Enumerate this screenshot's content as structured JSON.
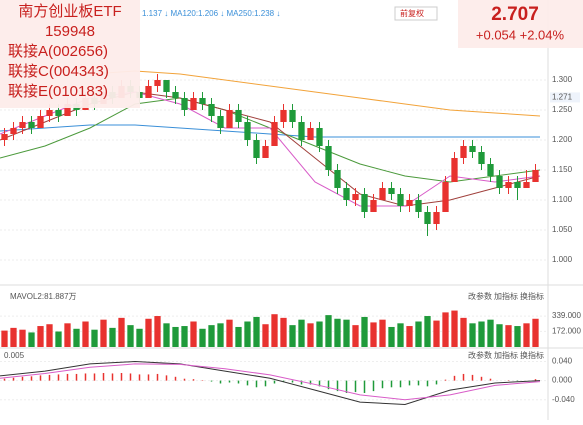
{
  "overlay": {
    "name_lines": [
      "南方创业板ETF",
      "159948",
      "联接A(002656)",
      "联接C(004343)",
      "联接E(010183)"
    ],
    "price": "2.707",
    "change": "+0.054 +2.04%"
  },
  "top_bar": {
    "ma_text": "1.137 ↓ MA120:1.206 ↓ MA250:1.238 ↓",
    "adjust": "前复权"
  },
  "chart_data": {
    "type": "candlestick",
    "ylim": [
      0.975,
      1.4
    ],
    "yticks": [
      {
        "value": 1.3,
        "label": "1.300"
      },
      {
        "value": 1.25,
        "label": "1.250"
      },
      {
        "value": 1.2,
        "label": "1.200"
      },
      {
        "value": 1.15,
        "label": "1.150"
      },
      {
        "value": 1.1,
        "label": "1.100"
      },
      {
        "value": 1.05,
        "label": "1.050"
      },
      {
        "value": 1.0,
        "label": "1.000"
      }
    ],
    "current": {
      "value": 1.271,
      "label": "1.271"
    },
    "up_color": "#e8322f",
    "down_color": "#1f9a3a",
    "candles": [
      [
        1.2,
        1.22,
        1.19,
        1.21
      ],
      [
        1.21,
        1.23,
        1.2,
        1.22
      ],
      [
        1.22,
        1.24,
        1.21,
        1.23
      ],
      [
        1.23,
        1.24,
        1.21,
        1.22
      ],
      [
        1.22,
        1.25,
        1.22,
        1.24
      ],
      [
        1.24,
        1.26,
        1.23,
        1.25
      ],
      [
        1.25,
        1.26,
        1.23,
        1.24
      ],
      [
        1.24,
        1.27,
        1.24,
        1.26
      ],
      [
        1.26,
        1.27,
        1.24,
        1.25
      ],
      [
        1.25,
        1.28,
        1.25,
        1.27
      ],
      [
        1.27,
        1.28,
        1.25,
        1.26
      ],
      [
        1.26,
        1.29,
        1.26,
        1.28
      ],
      [
        1.28,
        1.29,
        1.26,
        1.27
      ],
      [
        1.27,
        1.3,
        1.27,
        1.29
      ],
      [
        1.29,
        1.3,
        1.27,
        1.28
      ],
      [
        1.28,
        1.29,
        1.26,
        1.27
      ],
      [
        1.27,
        1.3,
        1.27,
        1.29
      ],
      [
        1.29,
        1.31,
        1.28,
        1.3
      ],
      [
        1.3,
        1.3,
        1.27,
        1.28
      ],
      [
        1.28,
        1.29,
        1.26,
        1.27
      ],
      [
        1.27,
        1.28,
        1.24,
        1.25
      ],
      [
        1.25,
        1.28,
        1.25,
        1.27
      ],
      [
        1.27,
        1.28,
        1.25,
        1.26
      ],
      [
        1.26,
        1.27,
        1.23,
        1.24
      ],
      [
        1.24,
        1.25,
        1.21,
        1.22
      ],
      [
        1.22,
        1.26,
        1.22,
        1.25
      ],
      [
        1.25,
        1.26,
        1.22,
        1.23
      ],
      [
        1.23,
        1.24,
        1.19,
        1.2
      ],
      [
        1.2,
        1.21,
        1.16,
        1.17
      ],
      [
        1.17,
        1.2,
        1.17,
        1.19
      ],
      [
        1.19,
        1.24,
        1.19,
        1.23
      ],
      [
        1.23,
        1.26,
        1.22,
        1.25
      ],
      [
        1.25,
        1.26,
        1.22,
        1.23
      ],
      [
        1.23,
        1.24,
        1.19,
        1.2
      ],
      [
        1.2,
        1.23,
        1.2,
        1.22
      ],
      [
        1.22,
        1.23,
        1.18,
        1.19
      ],
      [
        1.19,
        1.2,
        1.14,
        1.15
      ],
      [
        1.15,
        1.16,
        1.11,
        1.12
      ],
      [
        1.12,
        1.13,
        1.09,
        1.1
      ],
      [
        1.1,
        1.12,
        1.09,
        1.11
      ],
      [
        1.11,
        1.12,
        1.07,
        1.08
      ],
      [
        1.08,
        1.11,
        1.08,
        1.1
      ],
      [
        1.1,
        1.13,
        1.1,
        1.12
      ],
      [
        1.12,
        1.13,
        1.1,
        1.11
      ],
      [
        1.11,
        1.12,
        1.08,
        1.09
      ],
      [
        1.09,
        1.11,
        1.08,
        1.1
      ],
      [
        1.1,
        1.11,
        1.07,
        1.08
      ],
      [
        1.08,
        1.09,
        1.04,
        1.06
      ],
      [
        1.06,
        1.09,
        1.05,
        1.08
      ],
      [
        1.08,
        1.14,
        1.08,
        1.13
      ],
      [
        1.13,
        1.18,
        1.13,
        1.17
      ],
      [
        1.17,
        1.2,
        1.16,
        1.19
      ],
      [
        1.19,
        1.2,
        1.17,
        1.18
      ],
      [
        1.18,
        1.19,
        1.15,
        1.16
      ],
      [
        1.16,
        1.17,
        1.13,
        1.14
      ],
      [
        1.14,
        1.15,
        1.11,
        1.12
      ],
      [
        1.12,
        1.14,
        1.11,
        1.13
      ],
      [
        1.13,
        1.14,
        1.1,
        1.12
      ],
      [
        1.12,
        1.15,
        1.12,
        1.13
      ],
      [
        1.13,
        1.16,
        1.13,
        1.15
      ]
    ],
    "series": [
      {
        "color": "#f2a33a",
        "values": [
          null,
          null,
          1.31,
          1.315,
          1.31,
          1.3,
          1.29,
          1.28,
          1.27,
          1.26,
          1.25,
          1.245,
          1.24
        ]
      },
      {
        "color": "#3a8fd8",
        "values": [
          1.215,
          1.22,
          1.225,
          1.225,
          1.22,
          1.215,
          1.21,
          1.205,
          1.205,
          1.205,
          1.205,
          1.205,
          1.205
        ]
      },
      {
        "color": "#4c9a3c",
        "values": [
          1.17,
          1.19,
          1.22,
          1.26,
          1.27,
          1.25,
          1.22,
          1.19,
          1.16,
          1.14,
          1.13,
          1.14,
          1.15
        ]
      },
      {
        "color": "#a0403c",
        "values": [
          1.2,
          1.23,
          1.26,
          1.28,
          1.27,
          1.25,
          1.23,
          1.17,
          1.11,
          1.09,
          1.1,
          1.12,
          1.14
        ]
      },
      {
        "color": "#d85cc8",
        "values": [
          1.21,
          1.24,
          1.27,
          1.28,
          1.26,
          1.22,
          1.22,
          1.13,
          1.09,
          1.09,
          1.14,
          1.13,
          1.14
        ]
      }
    ]
  },
  "volume": {
    "label": "MAVOL2:81.887万",
    "ylim": [
      0,
      516
    ],
    "yticks": [
      {
        "value": 339,
        "label": "339.000"
      },
      {
        "value": 172,
        "label": "172.000"
      }
    ],
    "values": [
      180,
      210,
      190,
      160,
      230,
      250,
      170,
      260,
      200,
      280,
      190,
      300,
      210,
      320,
      240,
      200,
      310,
      340,
      260,
      220,
      230,
      280,
      200,
      240,
      260,
      300,
      220,
      280,
      330,
      250,
      360,
      320,
      240,
      300,
      260,
      280,
      350,
      310,
      300,
      240,
      330,
      270,
      300,
      220,
      260,
      230,
      280,
      340,
      290,
      380,
      400,
      320,
      260,
      280,
      300,
      250,
      240,
      230,
      260,
      310
    ]
  },
  "macd": {
    "label": "0.005",
    "ylim": [
      -0.07,
      0.06
    ],
    "yticks": [
      {
        "value": 0.04,
        "label": "0.040"
      },
      {
        "value": 0,
        "label": "0.000"
      },
      {
        "value": -0.04,
        "label": "-0.040"
      }
    ],
    "bars": [
      0.004,
      0.006,
      0.008,
      0.009,
      0.011,
      0.012,
      0.013,
      0.014,
      0.014,
      0.015,
      0.015,
      0.016,
      0.015,
      0.016,
      0.015,
      0.013,
      0.013,
      0.014,
      0.011,
      0.008,
      0.004,
      0.003,
      0.001,
      -0.002,
      -0.006,
      -0.004,
      -0.006,
      -0.01,
      -0.014,
      -0.012,
      -0.006,
      -0.002,
      -0.004,
      -0.008,
      -0.008,
      -0.012,
      -0.018,
      -0.022,
      -0.026,
      -0.024,
      -0.026,
      -0.022,
      -0.016,
      -0.014,
      -0.014,
      -0.01,
      -0.01,
      -0.012,
      -0.008,
      0.002,
      0.01,
      0.014,
      0.012,
      0.008,
      0.004,
      0.0,
      0.001,
      -0.001,
      0.0,
      0.003
    ],
    "lines": [
      {
        "color": "#333333",
        "values": [
          0.01,
          0.02,
          0.035,
          0.04,
          0.035,
          0.02,
          0.005,
          -0.02,
          -0.045,
          -0.05,
          -0.02,
          -0.005,
          0.0
        ]
      },
      {
        "color": "#d85cc8",
        "values": [
          0.005,
          0.015,
          0.028,
          0.035,
          0.034,
          0.025,
          0.012,
          -0.008,
          -0.03,
          -0.04,
          -0.03,
          -0.01,
          -0.002
        ]
      }
    ]
  },
  "buttons": [
    "改参数",
    "加指标",
    "换指标"
  ]
}
